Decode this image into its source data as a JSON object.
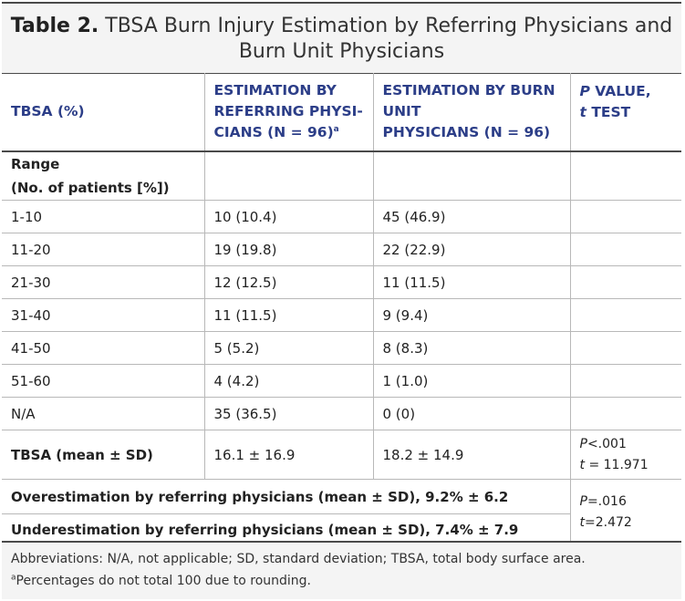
{
  "title": {
    "label": "Table 2.",
    "text": "TBSA Burn Injury Estimation by Referring Physicians and Burn Unit Physicians"
  },
  "headers": {
    "col1": "TBSA (%)",
    "col2_line1": "ESTIMATION BY",
    "col2_line2": "REFERRING PHYSI-",
    "col2_line3": "CIANS (N = 96)",
    "col2_sup": "a",
    "col3_line1": "ESTIMATION BY BURN",
    "col3_line2": "UNIT",
    "col3_line3": "PHYSICIANS (N = 96)",
    "col4_p": "P",
    "col4_line1_rest": " VALUE,",
    "col4_t": "t",
    "col4_line2_rest": " TEST"
  },
  "range_label_line1": "Range",
  "range_label_line2": "(No. of patients [%])",
  "rows": [
    {
      "tbsa": "1-10",
      "referring": "10 (10.4)",
      "burn_unit": "45 (46.9)"
    },
    {
      "tbsa": "11-20",
      "referring": "19 (19.8)",
      "burn_unit": "22 (22.9)"
    },
    {
      "tbsa": "21-30",
      "referring": "12 (12.5)",
      "burn_unit": "11 (11.5)"
    },
    {
      "tbsa": "31-40",
      "referring": "11 (11.5)",
      "burn_unit": "9 (9.4)"
    },
    {
      "tbsa": "41-50",
      "referring": "5 (5.2)",
      "burn_unit": "8 (8.3)"
    },
    {
      "tbsa": "51-60",
      "referring": "4 (4.2)",
      "burn_unit": "1 (1.0)"
    },
    {
      "tbsa": "N/A",
      "referring": "35 (36.5)",
      "burn_unit": "0 (0)"
    }
  ],
  "mean_row": {
    "label": "TBSA (mean ± SD)",
    "referring": "16.1 ± 16.9",
    "burn_unit": "18.2 ± 14.9",
    "p_sym": "P",
    "p_val": "<.001",
    "t_sym": "t",
    "t_val": " = 11.971"
  },
  "over_row": {
    "label": "Overestimation by referring physicians (mean ± SD), 9.2% ± 6.2"
  },
  "under_row": {
    "label": "Underestimation by referring physicians (mean ± SD), 7.4% ± 7.9"
  },
  "over_under_p": {
    "p_sym": "P",
    "p_val": "=.016",
    "t_sym": "t",
    "t_val": "=2.472"
  },
  "footnotes": {
    "abbrev": "Abbreviations: N/A, not applicable; SD, standard deviation; TBSA, total body surface area.",
    "sup": "a",
    "note": "Percentages do not total 100 due to rounding."
  }
}
